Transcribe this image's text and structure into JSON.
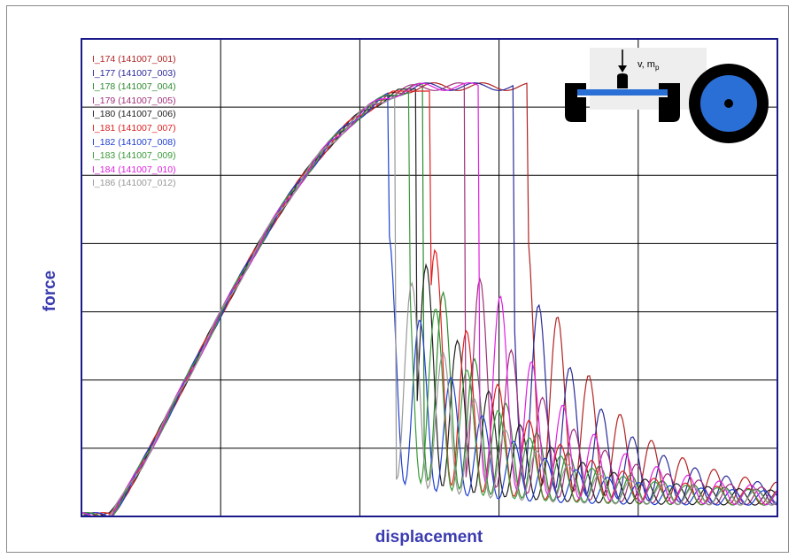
{
  "chart_data": {
    "type": "line",
    "title": "",
    "xlabel": "displacement",
    "ylabel": "force",
    "grid": true,
    "legend_placement": "top-left",
    "series": [
      {
        "name": "I_174 (141007_001)",
        "color": "#b22222",
        "peak_x": 0.52,
        "drop_x": 0.64
      },
      {
        "name": "I_177 (141007_003)",
        "color": "#2a2a9a",
        "peak_x": 0.54,
        "drop_x": 0.62
      },
      {
        "name": "I_178 (141007_004)",
        "color": "#2e8b2e",
        "peak_x": 0.5,
        "drop_x": 0.49
      },
      {
        "name": "I_179 (141007_005)",
        "color": "#a0307a",
        "peak_x": 0.5,
        "drop_x": 0.55
      },
      {
        "name": "I_180 (141007_006)",
        "color": "#222222",
        "peak_x": 0.48,
        "drop_x": 0.48
      },
      {
        "name": "I_181 (141007_007)",
        "color": "#e02020",
        "peak_x": 0.49,
        "drop_x": 0.5
      },
      {
        "name": "I_182 (141007_008)",
        "color": "#2040d0",
        "peak_x": 0.44,
        "drop_x": 0.44
      },
      {
        "name": "I_183 (141007_009)",
        "color": "#3a9a3a",
        "peak_x": 0.47,
        "drop_x": 0.47
      },
      {
        "name": "I_184 (141007_010)",
        "color": "#e020e0",
        "peak_x": 0.56,
        "drop_x": 0.57
      },
      {
        "name": "I_186 (141007_012)",
        "color": "#999999",
        "peak_x": 0.45,
        "drop_x": 0.45
      }
    ],
    "x_grid_divisions": 5,
    "y_grid_divisions": 7
  },
  "inset": {
    "label": "v, m",
    "label_sub": "p",
    "accent_color": "#2a6fd6",
    "dark_color": "#000000"
  },
  "colors": {
    "axis": "#1a1a8a",
    "grid": "#000000",
    "label": "#3b3bb0"
  }
}
